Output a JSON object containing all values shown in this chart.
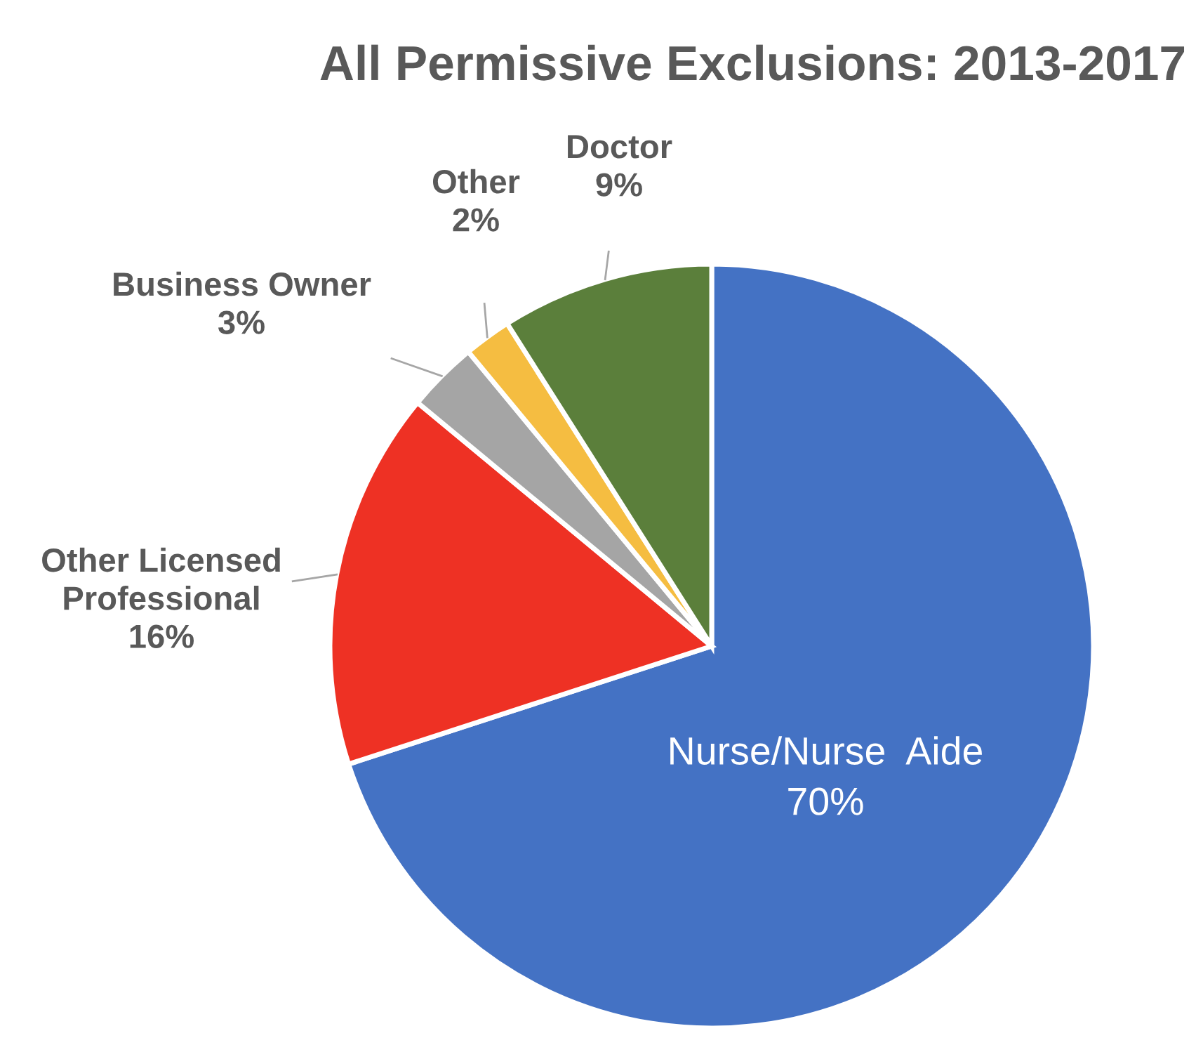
{
  "chart_data": {
    "type": "pie",
    "title": "All Permissive Exclusions: 2013-2017",
    "categories": [
      "Nurse/Nurse  Aide",
      "Other Licensed Professional",
      "Business Owner",
      "Other",
      "Doctor"
    ],
    "values": [
      70,
      16,
      3,
      2,
      9
    ],
    "colors": [
      "#4472c4",
      "#ee3124",
      "#a5a5a5",
      "#f5bd41",
      "#5b7f3b"
    ],
    "value_labels": [
      "70%",
      "16%",
      "3%",
      "2%",
      "9%"
    ],
    "legend": false
  }
}
